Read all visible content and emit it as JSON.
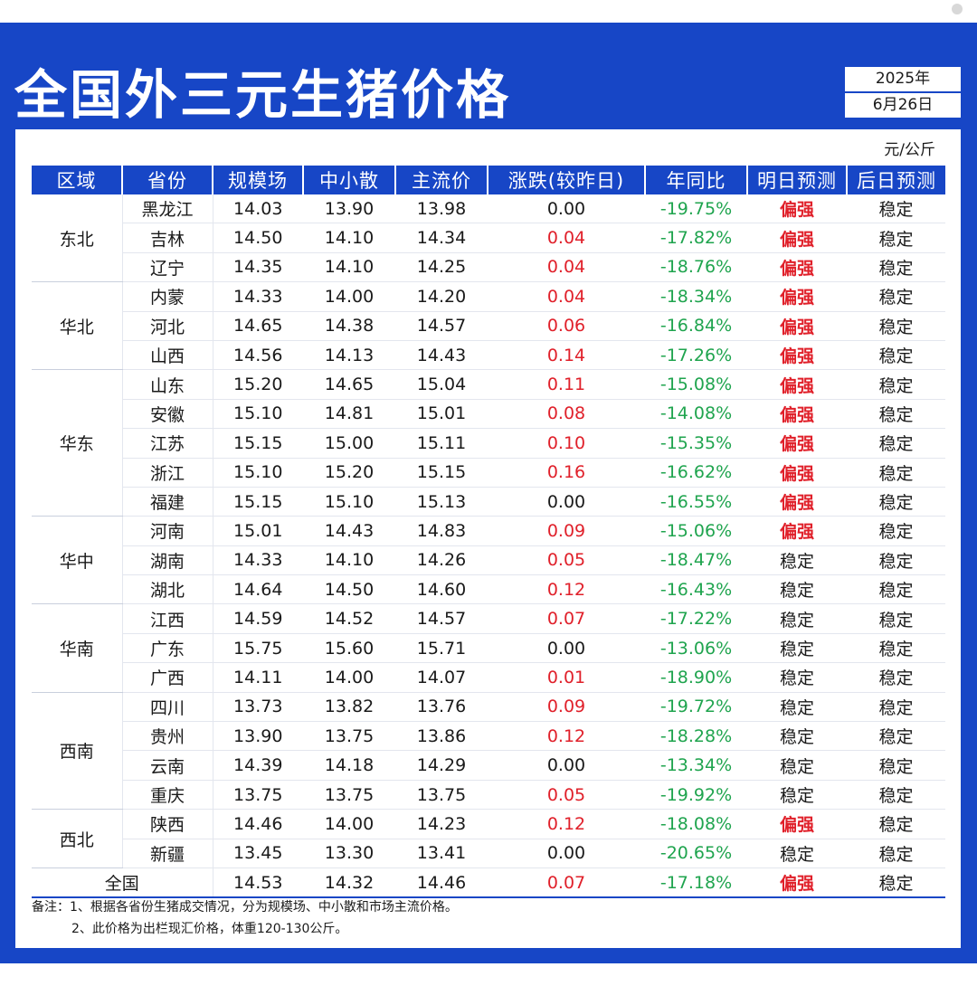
{
  "title": "全国外三元生猪价格",
  "date": {
    "year": "2025年",
    "day": "6月26日"
  },
  "unit": "元/公斤",
  "headers": [
    "区域",
    "省份",
    "规模场",
    "中小散",
    "主流价",
    "涨跌(较昨日)",
    "年同比",
    "明日预测",
    "后日预测"
  ],
  "regions": [
    {
      "name": "东北",
      "rows": 3
    },
    {
      "name": "华北",
      "rows": 3
    },
    {
      "name": "华东",
      "rows": 5
    },
    {
      "name": "华中",
      "rows": 3
    },
    {
      "name": "华南",
      "rows": 3
    },
    {
      "name": "西南",
      "rows": 4
    },
    {
      "name": "西北",
      "rows": 2
    }
  ],
  "rows": [
    {
      "province": "黑龙江",
      "large": "14.03",
      "small": "13.90",
      "main": "13.98",
      "change": "0.00",
      "yoy": "-19.75%",
      "tomorrow": "偏强",
      "dayafter": "稳定"
    },
    {
      "province": "吉林",
      "large": "14.50",
      "small": "14.10",
      "main": "14.34",
      "change": "0.04",
      "yoy": "-17.82%",
      "tomorrow": "偏强",
      "dayafter": "稳定"
    },
    {
      "province": "辽宁",
      "large": "14.35",
      "small": "14.10",
      "main": "14.25",
      "change": "0.04",
      "yoy": "-18.76%",
      "tomorrow": "偏强",
      "dayafter": "稳定"
    },
    {
      "province": "内蒙",
      "large": "14.33",
      "small": "14.00",
      "main": "14.20",
      "change": "0.04",
      "yoy": "-18.34%",
      "tomorrow": "偏强",
      "dayafter": "稳定"
    },
    {
      "province": "河北",
      "large": "14.65",
      "small": "14.38",
      "main": "14.57",
      "change": "0.06",
      "yoy": "-16.84%",
      "tomorrow": "偏强",
      "dayafter": "稳定"
    },
    {
      "province": "山西",
      "large": "14.56",
      "small": "14.13",
      "main": "14.43",
      "change": "0.14",
      "yoy": "-17.26%",
      "tomorrow": "偏强",
      "dayafter": "稳定"
    },
    {
      "province": "山东",
      "large": "15.20",
      "small": "14.65",
      "main": "15.04",
      "change": "0.11",
      "yoy": "-15.08%",
      "tomorrow": "偏强",
      "dayafter": "稳定"
    },
    {
      "province": "安徽",
      "large": "15.10",
      "small": "14.81",
      "main": "15.01",
      "change": "0.08",
      "yoy": "-14.08%",
      "tomorrow": "偏强",
      "dayafter": "稳定"
    },
    {
      "province": "江苏",
      "large": "15.15",
      "small": "15.00",
      "main": "15.11",
      "change": "0.10",
      "yoy": "-15.35%",
      "tomorrow": "偏强",
      "dayafter": "稳定"
    },
    {
      "province": "浙江",
      "large": "15.10",
      "small": "15.20",
      "main": "15.15",
      "change": "0.16",
      "yoy": "-16.62%",
      "tomorrow": "偏强",
      "dayafter": "稳定"
    },
    {
      "province": "福建",
      "large": "15.15",
      "small": "15.10",
      "main": "15.13",
      "change": "0.00",
      "yoy": "-16.55%",
      "tomorrow": "偏强",
      "dayafter": "稳定"
    },
    {
      "province": "河南",
      "large": "15.01",
      "small": "14.43",
      "main": "14.83",
      "change": "0.09",
      "yoy": "-15.06%",
      "tomorrow": "偏强",
      "dayafter": "稳定"
    },
    {
      "province": "湖南",
      "large": "14.33",
      "small": "14.10",
      "main": "14.26",
      "change": "0.05",
      "yoy": "-18.47%",
      "tomorrow": "稳定",
      "dayafter": "稳定"
    },
    {
      "province": "湖北",
      "large": "14.64",
      "small": "14.50",
      "main": "14.60",
      "change": "0.12",
      "yoy": "-16.43%",
      "tomorrow": "稳定",
      "dayafter": "稳定"
    },
    {
      "province": "江西",
      "large": "14.59",
      "small": "14.52",
      "main": "14.57",
      "change": "0.07",
      "yoy": "-17.22%",
      "tomorrow": "稳定",
      "dayafter": "稳定"
    },
    {
      "province": "广东",
      "large": "15.75",
      "small": "15.60",
      "main": "15.71",
      "change": "0.00",
      "yoy": "-13.06%",
      "tomorrow": "稳定",
      "dayafter": "稳定"
    },
    {
      "province": "广西",
      "large": "14.11",
      "small": "14.00",
      "main": "14.07",
      "change": "0.01",
      "yoy": "-18.90%",
      "tomorrow": "稳定",
      "dayafter": "稳定"
    },
    {
      "province": "四川",
      "large": "13.73",
      "small": "13.82",
      "main": "13.76",
      "change": "0.09",
      "yoy": "-19.72%",
      "tomorrow": "稳定",
      "dayafter": "稳定"
    },
    {
      "province": "贵州",
      "large": "13.90",
      "small": "13.75",
      "main": "13.86",
      "change": "0.12",
      "yoy": "-18.28%",
      "tomorrow": "稳定",
      "dayafter": "稳定"
    },
    {
      "province": "云南",
      "large": "14.39",
      "small": "14.18",
      "main": "14.29",
      "change": "0.00",
      "yoy": "-13.34%",
      "tomorrow": "稳定",
      "dayafter": "稳定"
    },
    {
      "province": "重庆",
      "large": "13.75",
      "small": "13.75",
      "main": "13.75",
      "change": "0.05",
      "yoy": "-19.92%",
      "tomorrow": "稳定",
      "dayafter": "稳定"
    },
    {
      "province": "陕西",
      "large": "14.46",
      "small": "14.00",
      "main": "14.23",
      "change": "0.12",
      "yoy": "-18.08%",
      "tomorrow": "偏强",
      "dayafter": "稳定"
    },
    {
      "province": "新疆",
      "large": "13.45",
      "small": "13.30",
      "main": "13.41",
      "change": "0.00",
      "yoy": "-20.65%",
      "tomorrow": "稳定",
      "dayafter": "稳定"
    }
  ],
  "total": {
    "label": "全国",
    "large": "14.53",
    "small": "14.32",
    "main": "14.46",
    "change": "0.07",
    "yoy": "-17.18%",
    "tomorrow": "偏强",
    "dayafter": "稳定"
  },
  "notes": [
    "备注：1、根据各省份生猪成交情况，分为规模场、中小散和市场主流价格。",
    "2、此价格为出栏现汇价格，体重120-130公斤。"
  ],
  "colors": {
    "brand": "#1746c6",
    "up": "#e0202a",
    "yoy": "#1fa44e"
  }
}
